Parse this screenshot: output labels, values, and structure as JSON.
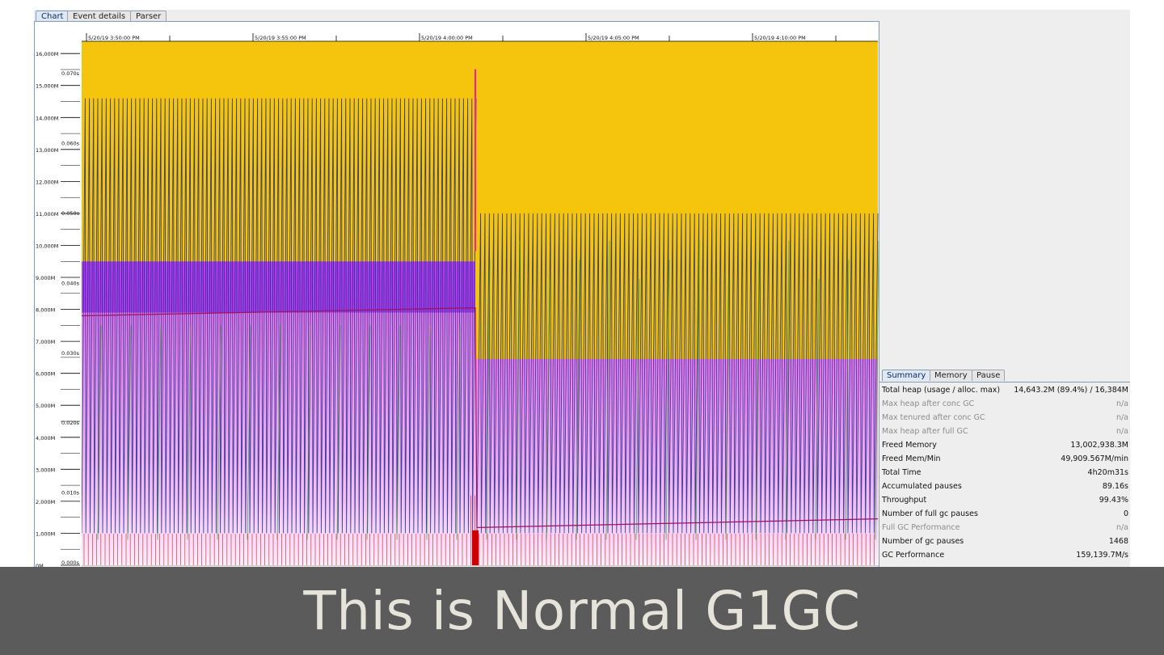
{
  "tabs": [
    {
      "label": "Chart",
      "active": true
    },
    {
      "label": "Event details",
      "active": false
    },
    {
      "label": "Parser",
      "active": false
    }
  ],
  "chart_data": {
    "type": "area",
    "x_tick_labels": [
      "5/20/19 3:50:00 PM",
      "5/20/19 3:55:00 PM",
      "5/20/19 4:00:00 PM",
      "5/20/19 4:05:00 PM",
      "5/20/19 4:10:00 PM"
    ],
    "heap_axis_labels": [
      "16,000M",
      "15,000M",
      "14,000M",
      "13,000M",
      "12,000M",
      "11,000M",
      "10,000M",
      "9,000M",
      "8,000M",
      "7,000M",
      "6,000M",
      "5,000M",
      "4,000M",
      "3,000M",
      "2,000M",
      "1,000M",
      "0M"
    ],
    "pause_axis_labels": [
      "0.070s",
      "0.060s",
      "0.050s",
      "0.040s",
      "0.030s",
      "0.020s",
      "0.010s",
      "0.000s"
    ],
    "heap_range_mb": [
      0,
      16384
    ],
    "pause_range_s": [
      0,
      0.075
    ],
    "phases": [
      {
        "young_gen_max_mb": 9500,
        "old_gen_used_mb": 7900,
        "heap_peak_mb": 14600,
        "heap_floor_mb": 1000
      },
      {
        "young_gen_max_mb": 6450,
        "old_gen_used_mb": 1200,
        "heap_peak_mb": 11000,
        "heap_floor_mb": 1000
      }
    ],
    "colors": {
      "total_heap": "#f5c40c",
      "young_gen": "#b63cf0",
      "tenured_gen": "#f07cf0",
      "used_heap": "#1a2a8c",
      "gc_pause": "#cc0000",
      "concurrent": "#2aa02a",
      "used_tenured": "#a01060"
    }
  },
  "summary": {
    "tabs": [
      {
        "label": "Summary",
        "active": true
      },
      {
        "label": "Memory",
        "active": false
      },
      {
        "label": "Pause",
        "active": false
      }
    ],
    "rows": [
      {
        "key": "Total heap (usage / alloc. max)",
        "value": "14,643.2M (89.4%) / 16,384M",
        "muted": false
      },
      {
        "key": "Max heap after conc GC",
        "value": "n/a",
        "muted": true
      },
      {
        "key": "Max tenured after conc GC",
        "value": "n/a",
        "muted": true
      },
      {
        "key": "Max heap after full GC",
        "value": "n/a",
        "muted": true
      },
      {
        "key": "Freed Memory",
        "value": "13,002,938.3M",
        "muted": false
      },
      {
        "key": "Freed Mem/Min",
        "value": "49,909.567M/min",
        "muted": false
      },
      {
        "key": "Total Time",
        "value": "4h20m31s",
        "muted": false
      },
      {
        "key": "Accumulated pauses",
        "value": "89.16s",
        "muted": false
      },
      {
        "key": "Throughput",
        "value": "99.43%",
        "muted": false
      },
      {
        "key": "Number of full gc pauses",
        "value": "0",
        "muted": false
      },
      {
        "key": "Full GC Performance",
        "value": "n/a",
        "muted": true
      },
      {
        "key": "Number of gc pauses",
        "value": "1468",
        "muted": false
      },
      {
        "key": "GC Performance",
        "value": "159,139.7M/s",
        "muted": false
      }
    ]
  },
  "caption": "This is Normal G1GC"
}
